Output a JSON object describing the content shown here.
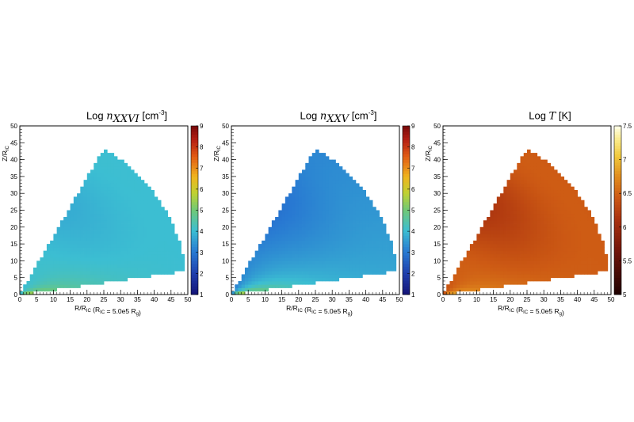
{
  "chart_data": [
    {
      "type": "heatmap",
      "title": "Log nXXVI [cm-3]",
      "title_parts": {
        "prefix": "Log",
        "symbol": "n",
        "subscript": "XXVI",
        "unit": "[cm",
        "exponent": "-3",
        "unit_close": "]"
      },
      "xlabel_parts": {
        "main": "R/R",
        "sub": "IC",
        "paren_open": " (R",
        "paren_sub": "IC",
        "paren_mid": " = 5.0e5 R",
        "paren_sub2": "g",
        "paren_close": ")"
      },
      "ylabel_parts": {
        "main": "Z/R",
        "sub": "IC"
      },
      "xlim": [
        0,
        50
      ],
      "ylim": [
        0,
        50
      ],
      "x_ticks": [
        "0",
        "5",
        "10",
        "15",
        "20",
        "25",
        "30",
        "35",
        "40",
        "45",
        "50"
      ],
      "y_ticks": [
        "0",
        "5",
        "10",
        "15",
        "20",
        "25",
        "30",
        "35",
        "40",
        "45",
        "50"
      ],
      "wedge": {
        "r_max": 50,
        "angle_min_deg": 8,
        "angle_max_deg": 60
      },
      "colorbar": {
        "min": 1,
        "max": 9,
        "ticks": [
          "1",
          "2",
          "3",
          "4",
          "5",
          "6",
          "7",
          "8",
          "9"
        ],
        "palette": "rainbow"
      },
      "value_field": {
        "base": 4.0,
        "core_peak": 5.8,
        "edge_min": 3.9
      },
      "grid": false
    },
    {
      "type": "heatmap",
      "title": "Log nXXV [cm-3]",
      "title_parts": {
        "prefix": "Log",
        "symbol": "n",
        "subscript": "XXV",
        "unit": "[cm",
        "exponent": "-3",
        "unit_close": "]"
      },
      "xlabel_parts": {
        "main": "R/R",
        "sub": "IC",
        "paren_open": " (R",
        "paren_sub": "IC",
        "paren_mid": " = 5.0e5 R",
        "paren_sub2": "g",
        "paren_close": ")"
      },
      "ylabel_parts": {
        "main": "Z/R",
        "sub": "IC"
      },
      "xlim": [
        0,
        50
      ],
      "ylim": [
        0,
        50
      ],
      "x_ticks": [
        "0",
        "5",
        "10",
        "15",
        "20",
        "25",
        "30",
        "35",
        "40",
        "45",
        "50"
      ],
      "y_ticks": [
        "0",
        "5",
        "10",
        "15",
        "20",
        "25",
        "30",
        "35",
        "40",
        "45",
        "50"
      ],
      "wedge": {
        "r_max": 50,
        "angle_min_deg": 8,
        "angle_max_deg": 60
      },
      "colorbar": {
        "min": 1,
        "max": 9,
        "ticks": [
          "1",
          "2",
          "3",
          "4",
          "5",
          "6",
          "7",
          "8",
          "9"
        ],
        "palette": "rainbow"
      },
      "value_field": {
        "base": 3.6,
        "core_peak": 6.0,
        "edge_min": 3.0
      },
      "grid": false
    },
    {
      "type": "heatmap",
      "title": "Log T [K]",
      "title_parts": {
        "prefix": "Log",
        "symbol": "T",
        "subscript": "",
        "unit": "[K]",
        "exponent": "",
        "unit_close": ""
      },
      "xlabel_parts": {
        "main": "R/R",
        "sub": "IC",
        "paren_open": " (R",
        "paren_sub": "IC",
        "paren_mid": " = 5.0e5 R",
        "paren_sub2": "g",
        "paren_close": ")"
      },
      "ylabel_parts": {
        "main": "Z/R",
        "sub": "IC"
      },
      "xlim": [
        0,
        50
      ],
      "ylim": [
        0,
        50
      ],
      "x_ticks": [
        "0",
        "5",
        "10",
        "15",
        "20",
        "25",
        "30",
        "35",
        "40",
        "45",
        "50"
      ],
      "y_ticks": [
        "0",
        "5",
        "10",
        "15",
        "20",
        "25",
        "30",
        "35",
        "40",
        "45",
        "50"
      ],
      "wedge": {
        "r_max": 50,
        "angle_min_deg": 8,
        "angle_max_deg": 60
      },
      "colorbar": {
        "min": 5,
        "max": 7.5,
        "ticks": [
          "5",
          "5.5",
          "6",
          "6.5",
          "7",
          "7.5"
        ],
        "palette": "hot"
      },
      "value_field": {
        "base": 6.45,
        "core_peak": 6.95,
        "edge_min": 6.3
      },
      "grid": false
    }
  ]
}
